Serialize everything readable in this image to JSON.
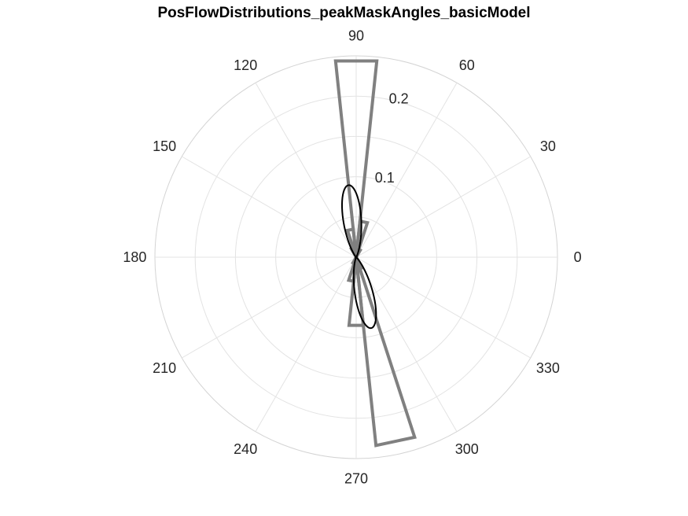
{
  "chart_data": {
    "type": "polar-histogram",
    "title": "PosFlowDistributions_peakMaskAngles_basicModel",
    "angle_ticks": [
      0,
      30,
      60,
      90,
      120,
      150,
      180,
      210,
      240,
      270,
      300,
      330
    ],
    "angle_tick_labels": [
      "0",
      "30",
      "60",
      "90",
      "120",
      "150",
      "180",
      "210",
      "240",
      "270",
      "300",
      "330"
    ],
    "radial_ticks": [
      0.1,
      0.2
    ],
    "radial_tick_labels": [
      "0.1",
      "0.2"
    ],
    "rlim": [
      0,
      0.25
    ],
    "grid": true,
    "series": [
      {
        "kind": "histogram",
        "color": "#808080",
        "bins": [
          {
            "theta_start": 84,
            "theta_end": 96,
            "r": 0.245
          },
          {
            "theta_start": 96,
            "theta_end": 108,
            "r": 0.035
          },
          {
            "theta_start": 108,
            "theta_end": 120,
            "r": 0.012
          },
          {
            "theta_start": 72,
            "theta_end": 84,
            "r": 0.045
          },
          {
            "theta_start": 60,
            "theta_end": 72,
            "r": 0.01
          },
          {
            "theta_start": 264,
            "theta_end": 276,
            "r": 0.085
          },
          {
            "theta_start": 276,
            "theta_end": 288,
            "r": 0.235
          },
          {
            "theta_start": 288,
            "theta_end": 300,
            "r": 0.015
          },
          {
            "theta_start": 252,
            "theta_end": 264,
            "r": 0.03
          },
          {
            "theta_start": 240,
            "theta_end": 252,
            "r": 0.008
          }
        ]
      },
      {
        "kind": "fit-curve",
        "color": "#000000",
        "type": "von-mises-bimodal",
        "mu_deg": [
          96,
          282
        ],
        "peak": 0.09,
        "width_deg": 12
      }
    ]
  }
}
